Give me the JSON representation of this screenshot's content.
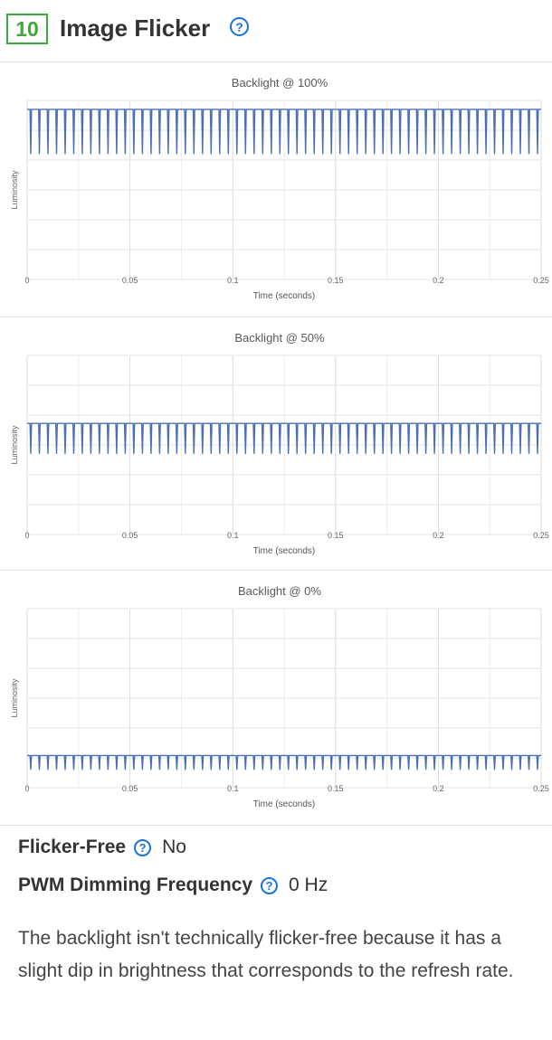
{
  "section": {
    "number": "10",
    "title": "Image Flicker"
  },
  "charts": [
    {
      "title": "Backlight @ 100%",
      "ylabel": "Luminosity",
      "xlabel": "Time (seconds)",
      "xticks": [
        "0",
        "0.05",
        "0.1",
        "0.15",
        "0.2",
        "0.25"
      ]
    },
    {
      "title": "Backlight @ 50%",
      "ylabel": "Luminosity",
      "xlabel": "Time (seconds)",
      "xticks": [
        "0",
        "0.05",
        "0.1",
        "0.15",
        "0.2",
        "0.25"
      ]
    },
    {
      "title": "Backlight @ 0%",
      "ylabel": "Luminosity",
      "xlabel": "Time (seconds)",
      "xticks": [
        "0",
        "0.05",
        "0.1",
        "0.15",
        "0.2",
        "0.25"
      ]
    }
  ],
  "chart_data": [
    {
      "type": "line",
      "title": "Backlight @ 100%",
      "xlabel": "Time (seconds)",
      "ylabel": "Luminosity",
      "xlim": [
        0,
        0.25
      ],
      "grid": true,
      "baseline_level": 0.95,
      "dip_level": 0.7,
      "dip_count": 60,
      "color": "#4a6fb5"
    },
    {
      "type": "line",
      "title": "Backlight @ 50%",
      "xlabel": "Time (seconds)",
      "ylabel": "Luminosity",
      "xlim": [
        0,
        0.25
      ],
      "grid": true,
      "baseline_level": 0.62,
      "dip_level": 0.45,
      "dip_count": 60,
      "color": "#4a6fb5"
    },
    {
      "type": "line",
      "title": "Backlight @ 0%",
      "xlabel": "Time (seconds)",
      "ylabel": "Luminosity",
      "xlim": [
        0,
        0.25
      ],
      "grid": true,
      "baseline_level": 0.18,
      "dip_level": 0.1,
      "dip_count": 60,
      "color": "#4a6fb5"
    }
  ],
  "specs": {
    "flicker_free_label": "Flicker-Free",
    "flicker_free_value": "No",
    "pwm_label": "PWM Dimming Frequency",
    "pwm_value": "0 Hz"
  },
  "description": "The backlight isn't technically flicker-free because it has a slight dip in brightness that corresponds to the refresh rate.",
  "colors": {
    "badge": "#3da93d",
    "help_icon": "#1a73d9",
    "line": "#4a6fb5"
  },
  "icons": {
    "help": "question-circle"
  }
}
